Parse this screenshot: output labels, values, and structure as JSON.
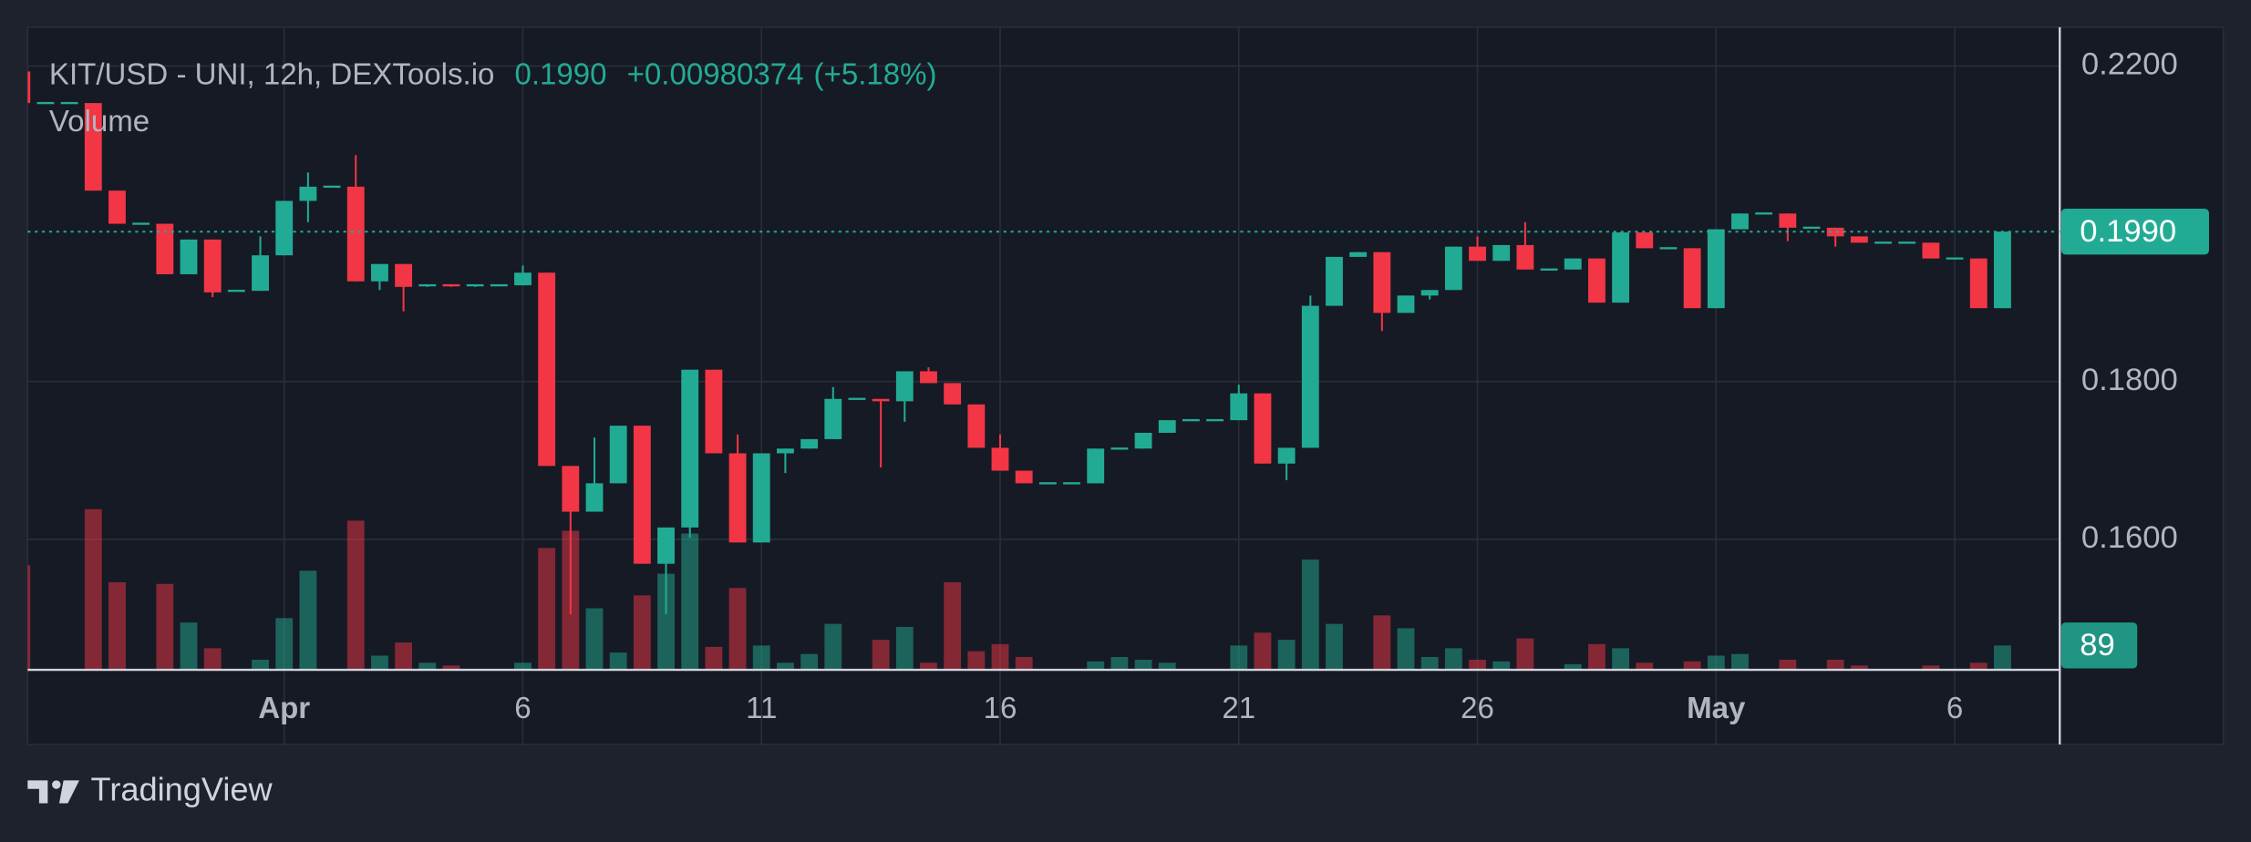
{
  "chart_data": {
    "type": "candlestick",
    "title": "KIT/USD - UNI, 12h, DEXTools.io",
    "price_label": "0.1990",
    "change": "+0.00980374",
    "change_pct": "(+5.18%)",
    "volume_label": "Volume",
    "footer": "TradingView",
    "up_color": "#22ab94",
    "down_color": "#f23645",
    "grid": true,
    "xlim": [
      0.25,
      85.4
    ],
    "ylim": [
      0.14345,
      0.22491
    ],
    "vlim": [
      0,
      2347
    ],
    "yticks": [
      {
        "value": 0.16,
        "label": "0.1600"
      },
      {
        "value": 0.18,
        "label": "0.1800"
      },
      {
        "value": 0.22,
        "label": "0.2200"
      }
    ],
    "xticks": [
      {
        "value": 11,
        "label": "Apr"
      },
      {
        "value": 21,
        "label": "6"
      },
      {
        "value": 31,
        "label": "11"
      },
      {
        "value": 41,
        "label": "16"
      },
      {
        "value": 51,
        "label": "21"
      },
      {
        "value": 61,
        "label": "26"
      },
      {
        "value": 71,
        "label": "May"
      },
      {
        "value": 81,
        "label": "6"
      }
    ],
    "ohlc": [
      [
        0.2193,
        0.2193,
        0.2153,
        0.2153
      ],
      [
        0.2153,
        0.2153,
        0.2153,
        0.2153
      ],
      [
        0.2153,
        0.2153,
        0.2153,
        0.2153
      ],
      [
        0.2153,
        0.2153,
        0.2042,
        0.2042
      ],
      [
        0.2042,
        0.2042,
        0.2,
        0.2
      ],
      [
        0.2,
        0.2,
        0.2,
        0.2
      ],
      [
        0.2,
        0.2,
        0.1936,
        0.1936
      ],
      [
        0.1936,
        0.198,
        0.1936,
        0.198
      ],
      [
        0.198,
        0.198,
        0.1907,
        0.1913
      ],
      [
        0.1915,
        0.1915,
        0.1915,
        0.1915
      ],
      [
        0.1915,
        0.1984,
        0.1915,
        0.196
      ],
      [
        0.196,
        0.2029,
        0.196,
        0.2029
      ],
      [
        0.2029,
        0.2065,
        0.2002,
        0.2047
      ],
      [
        0.2047,
        0.2047,
        0.2047,
        0.2047
      ],
      [
        0.2047,
        0.2087,
        0.1927,
        0.1927
      ],
      [
        0.1927,
        0.1949,
        0.1916,
        0.1949
      ],
      [
        0.1949,
        0.1949,
        0.1889,
        0.192
      ],
      [
        0.192,
        0.1922,
        0.192,
        0.1922
      ],
      [
        0.1922,
        0.1922,
        0.192,
        0.192
      ],
      [
        0.192,
        0.1922,
        0.192,
        0.1922
      ],
      [
        0.1922,
        0.1922,
        0.1922,
        0.1922
      ],
      [
        0.1922,
        0.1947,
        0.1922,
        0.1938
      ],
      [
        0.1938,
        0.1938,
        0.1693,
        0.1693
      ],
      [
        0.1693,
        0.1693,
        0.1505,
        0.1635
      ],
      [
        0.1635,
        0.1729,
        0.1635,
        0.1671
      ],
      [
        0.1671,
        0.1744,
        0.1671,
        0.1744
      ],
      [
        0.1744,
        0.1744,
        0.1569,
        0.1569
      ],
      [
        0.1569,
        0.1615,
        0.1505,
        0.1615
      ],
      [
        0.1615,
        0.1815,
        0.1602,
        0.1815
      ],
      [
        0.1815,
        0.1815,
        0.1709,
        0.1709
      ],
      [
        0.1709,
        0.1733,
        0.1596,
        0.1596
      ],
      [
        0.1596,
        0.1709,
        0.1596,
        0.1709
      ],
      [
        0.1709,
        0.1715,
        0.1684,
        0.1715
      ],
      [
        0.1715,
        0.1727,
        0.1715,
        0.1727
      ],
      [
        0.1727,
        0.1793,
        0.1727,
        0.1778
      ],
      [
        0.1778,
        0.1778,
        0.1778,
        0.1778
      ],
      [
        0.1778,
        0.1778,
        0.1691,
        0.1775
      ],
      [
        0.1775,
        0.1813,
        0.1749,
        0.1813
      ],
      [
        0.1813,
        0.1818,
        0.1798,
        0.1798
      ],
      [
        0.1798,
        0.1798,
        0.1771,
        0.1771
      ],
      [
        0.1771,
        0.1771,
        0.1716,
        0.1716
      ],
      [
        0.1716,
        0.1733,
        0.1687,
        0.1687
      ],
      [
        0.1687,
        0.1687,
        0.1671,
        0.1671
      ],
      [
        0.1671,
        0.1671,
        0.1671,
        0.1671
      ],
      [
        0.1671,
        0.1671,
        0.1671,
        0.1671
      ],
      [
        0.1671,
        0.1715,
        0.1671,
        0.1715
      ],
      [
        0.1715,
        0.1715,
        0.1715,
        0.1715
      ],
      [
        0.1715,
        0.1735,
        0.1715,
        0.1735
      ],
      [
        0.1735,
        0.1751,
        0.1735,
        0.1751
      ],
      [
        0.1751,
        0.1751,
        0.1751,
        0.1751
      ],
      [
        0.1751,
        0.1751,
        0.1751,
        0.1751
      ],
      [
        0.1751,
        0.1796,
        0.1751,
        0.1785
      ],
      [
        0.1785,
        0.1785,
        0.1696,
        0.1696
      ],
      [
        0.1696,
        0.1716,
        0.1675,
        0.1716
      ],
      [
        0.1716,
        0.1909,
        0.1716,
        0.1896
      ],
      [
        0.1896,
        0.1958,
        0.1896,
        0.1958
      ],
      [
        0.1958,
        0.1964,
        0.1958,
        0.1964
      ],
      [
        0.1964,
        0.1964,
        0.1864,
        0.1887
      ],
      [
        0.1887,
        0.1909,
        0.1887,
        0.1909
      ],
      [
        0.1909,
        0.1916,
        0.1904,
        0.1916
      ],
      [
        0.1916,
        0.1971,
        0.1916,
        0.1971
      ],
      [
        0.1971,
        0.1984,
        0.1953,
        0.1953
      ],
      [
        0.1953,
        0.1973,
        0.1953,
        0.1973
      ],
      [
        0.1973,
        0.2002,
        0.1942,
        0.1942
      ],
      [
        0.1942,
        0.1942,
        0.1942,
        0.1942
      ],
      [
        0.1942,
        0.1956,
        0.1942,
        0.1956
      ],
      [
        0.1956,
        0.1956,
        0.19,
        0.19
      ],
      [
        0.19,
        0.1989,
        0.19,
        0.1989
      ],
      [
        0.1989,
        0.1989,
        0.1969,
        0.1969
      ],
      [
        0.1969,
        0.1969,
        0.1969,
        0.1969
      ],
      [
        0.1969,
        0.1969,
        0.1893,
        0.1893
      ],
      [
        0.1893,
        0.1993,
        0.1893,
        0.1993
      ],
      [
        0.1993,
        0.2013,
        0.1993,
        0.2013
      ],
      [
        0.2013,
        0.2013,
        0.2013,
        0.2013
      ],
      [
        0.2013,
        0.2013,
        0.1978,
        0.1995
      ],
      [
        0.1995,
        0.1995,
        0.1995,
        0.1995
      ],
      [
        0.1995,
        0.1995,
        0.1971,
        0.1984
      ],
      [
        0.1984,
        0.1984,
        0.1976,
        0.1976
      ],
      [
        0.1976,
        0.1976,
        0.1976,
        0.1976
      ],
      [
        0.1976,
        0.1976,
        0.1976,
        0.1976
      ],
      [
        0.1976,
        0.1976,
        0.1956,
        0.1956
      ],
      [
        0.1956,
        0.1956,
        0.1956,
        0.1956
      ],
      [
        0.1956,
        0.1956,
        0.1893,
        0.1893
      ],
      [
        0.1893,
        0.199,
        0.1893,
        0.199
      ]
    ],
    "volume": [
      382,
      0,
      0,
      587,
      320,
      0,
      314,
      173,
      79,
      0,
      37,
      189,
      362,
      0,
      545,
      52,
      100,
      26,
      16,
      0,
      0,
      26,
      445,
      508,
      225,
      63,
      272,
      351,
      498,
      84,
      299,
      89,
      26,
      58,
      168,
      0,
      110,
      157,
      26,
      320,
      68,
      94,
      47,
      0,
      0,
      31,
      47,
      37,
      26,
      0,
      0,
      89,
      136,
      110,
      403,
      168,
      0,
      199,
      152,
      47,
      79,
      37,
      31,
      115,
      0,
      21,
      94,
      79,
      26,
      0,
      31,
      52,
      58,
      0,
      37,
      0,
      37,
      16,
      0,
      0,
      16,
      0,
      26,
      89
    ]
  }
}
